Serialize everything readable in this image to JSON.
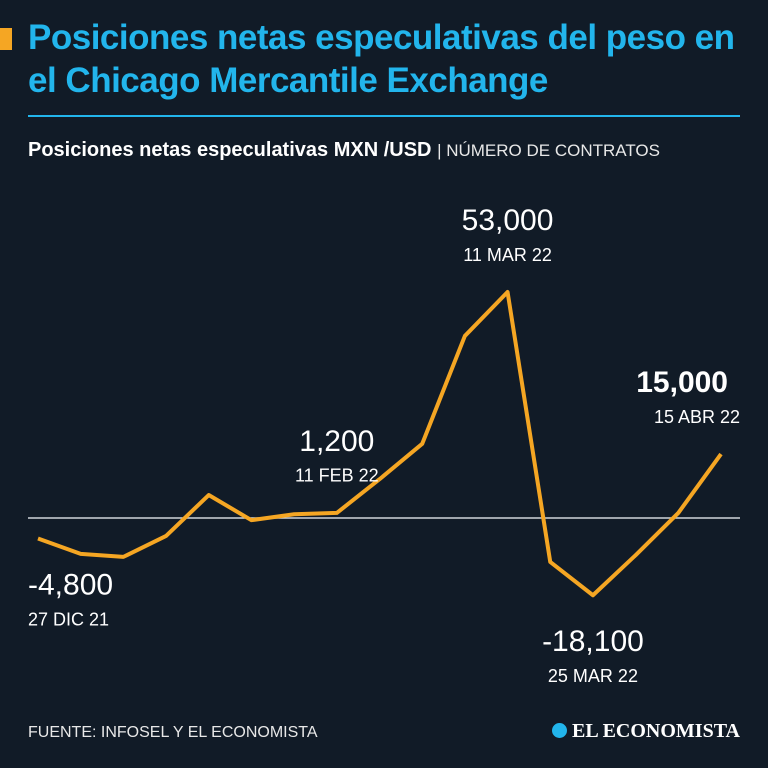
{
  "chart_data": {
    "type": "line",
    "title": "Posiciones netas especulativas del peso en el Chicago Mercantile Exchange",
    "subtitle": "Posiciones netas especulativas MXN /USD",
    "unit": "| NÚMERO DE CONTRATOS",
    "source": "FUENTE: INFOSEL Y EL ECONOMISTA",
    "brand": "EL ECONOMISTA",
    "categories": [
      "27 DIC 21",
      null,
      null,
      null,
      null,
      null,
      null,
      "11 FEB 22",
      null,
      null,
      null,
      "11 MAR 22",
      null,
      "25 MAR 22",
      null,
      null,
      "15 ABR 22"
    ],
    "values": [
      -4800,
      -8400,
      -9100,
      -4200,
      5400,
      -500,
      900,
      1200,
      9100,
      17400,
      42700,
      53000,
      -10300,
      -18100,
      -8700,
      1200,
      15000
    ],
    "value_labels": [
      "-4,800",
      null,
      null,
      null,
      null,
      null,
      null,
      "1,200",
      null,
      null,
      null,
      "53,000",
      null,
      "-18,100",
      null,
      null,
      "15,000"
    ],
    "color": "#f5a623",
    "ylim": [
      -30000,
      70000
    ]
  }
}
